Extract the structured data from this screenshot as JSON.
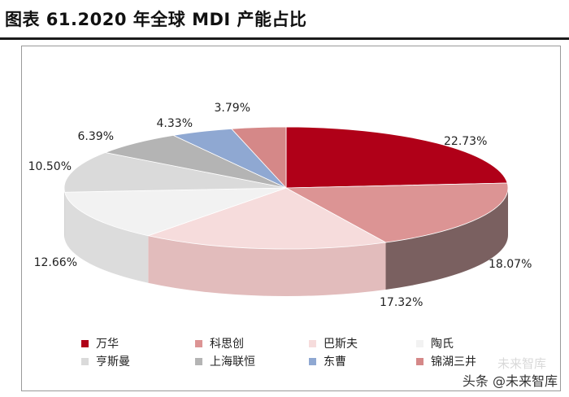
{
  "title": "图表 61.2020 年全球 MDI 产能占比",
  "chart_data": {
    "type": "pie",
    "title": "图表 61.2020 年全球 MDI 产能占比",
    "series": [
      {
        "name": "万华",
        "value": 22.73,
        "label": "22.73%",
        "color": "#b00018",
        "side": "#6b4a46"
      },
      {
        "name": "科思创",
        "value": 18.07,
        "label": "18.07%",
        "color": "#dc9494",
        "side": "#7a6060"
      },
      {
        "name": "巴斯夫",
        "value": 17.32,
        "label": "17.32%",
        "color": "#f6dcdc",
        "side": "#e2bcbc"
      },
      {
        "name": "陶氏",
        "value": 12.66,
        "label": "12.66%",
        "color": "#f2f2f2",
        "side": "#dcdcdc"
      },
      {
        "name": "亨斯曼",
        "value": 10.5,
        "label": "10.50%",
        "color": "#dadada",
        "side": "#c8c8c8"
      },
      {
        "name": "上海联恒",
        "value": 6.39,
        "label": "6.39%",
        "color": "#b4b4b4",
        "side": "#9e9e9e"
      },
      {
        "name": "东曹",
        "value": 4.33,
        "label": "4.33%",
        "color": "#8fa8d2",
        "side": "#7088b0"
      },
      {
        "name": "锦湖三井",
        "value": 3.79,
        "label": "3.79%",
        "color": "#d58888",
        "side": "#b06a6a"
      }
    ],
    "legend_position": "bottom"
  },
  "watermark": {
    "line1": "未来智库",
    "line2": "头条 @未来智库"
  }
}
